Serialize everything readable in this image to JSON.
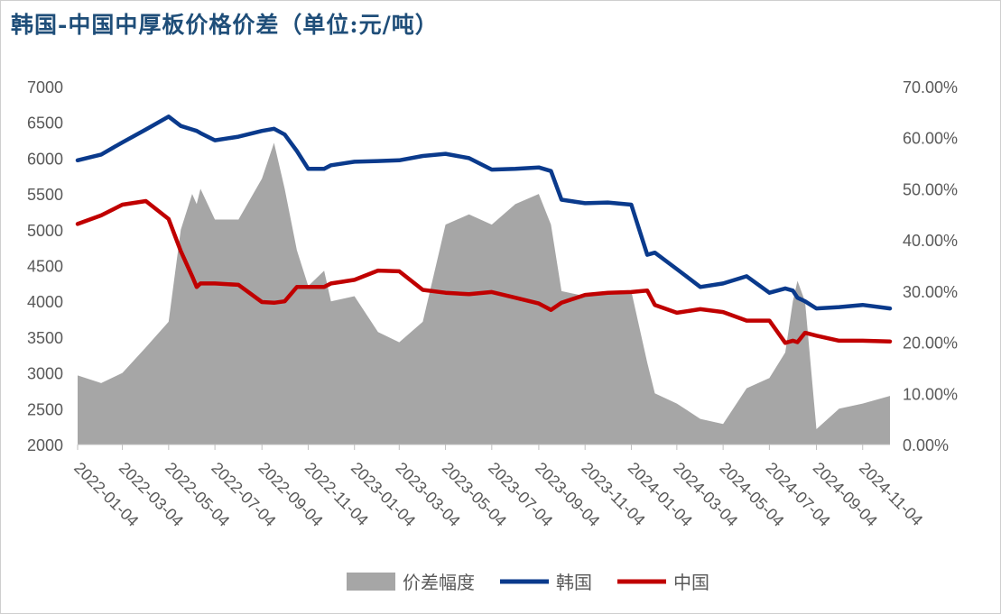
{
  "chart_data": {
    "type": "line",
    "title": "韩国-中国中厚板价格价差（单位:元/吨）",
    "xlabel": "",
    "ylabel": "",
    "ylim": [
      2000,
      7000
    ],
    "y2lim": [
      0,
      70
    ],
    "yticks": [
      "2000",
      "2500",
      "3000",
      "3500",
      "4000",
      "4500",
      "5000",
      "5500",
      "6000",
      "6500",
      "7000"
    ],
    "y2ticks": [
      "0.00%",
      "10.00%",
      "20.00%",
      "30.00%",
      "40.00%",
      "50.00%",
      "60.00%",
      "70.00%"
    ],
    "xticks": [
      "2022-01-04",
      "2022-03-04",
      "2022-05-04",
      "2022-07-04",
      "2022-09-04",
      "2022-11-04",
      "2023-01-04",
      "2023-03-04",
      "2023-05-04",
      "2023-07-04",
      "2023-09-04",
      "2023-11-04",
      "2024-01-04",
      "2024-03-04",
      "2024-05-04",
      "2024-07-04",
      "2024-09-04",
      "2024-11-04"
    ],
    "x": [
      "2022-01-04",
      "2022-02-04",
      "2022-03-04",
      "2022-04-04",
      "2022-05-04",
      "2022-05-20",
      "2022-06-04",
      "2022-06-10",
      "2022-06-15",
      "2022-07-04",
      "2022-08-04",
      "2022-09-04",
      "2022-09-20",
      "2022-10-04",
      "2022-10-20",
      "2022-11-04",
      "2022-11-25",
      "2022-12-04",
      "2023-01-04",
      "2023-02-04",
      "2023-03-04",
      "2023-04-04",
      "2023-05-04",
      "2023-06-04",
      "2023-07-04",
      "2023-08-04",
      "2023-09-04",
      "2023-09-20",
      "2023-10-04",
      "2023-11-04",
      "2023-12-04",
      "2024-01-04",
      "2024-01-25",
      "2024-02-04",
      "2024-03-04",
      "2024-04-04",
      "2024-05-04",
      "2024-06-04",
      "2024-07-04",
      "2024-07-25",
      "2024-08-04",
      "2024-08-10",
      "2024-08-20",
      "2024-09-04",
      "2024-10-04",
      "2024-11-04",
      "2024-12-10"
    ],
    "series": [
      {
        "name": "价差幅度",
        "axis": "right",
        "kind": "area",
        "color": "#a6a6a6",
        "values": [
          13.5,
          12,
          14,
          19,
          24,
          42,
          49,
          47,
          50,
          44,
          44,
          52,
          59,
          50,
          38,
          31,
          34,
          28,
          29,
          22,
          20,
          24,
          43,
          45,
          43,
          47,
          49,
          43,
          30,
          29,
          30,
          30,
          16,
          10,
          8,
          5,
          4,
          11,
          13,
          18,
          28,
          32,
          28,
          3,
          7,
          8,
          9.5
        ]
      },
      {
        "name": "韩国",
        "axis": "left",
        "kind": "line",
        "color": "#0a3a8c",
        "values": [
          5970,
          6050,
          6220,
          6400,
          6580,
          6450,
          6400,
          6380,
          6350,
          6250,
          6300,
          6380,
          6410,
          6330,
          6100,
          5850,
          5850,
          5900,
          5950,
          5960,
          5970,
          6030,
          6060,
          6000,
          5840,
          5850,
          5870,
          5820,
          5420,
          5370,
          5380,
          5350,
          4650,
          4680,
          4450,
          4200,
          4250,
          4350,
          4120,
          4180,
          4150,
          4050,
          4000,
          3900,
          3920,
          3950,
          3900
        ]
      },
      {
        "name": "中国",
        "axis": "left",
        "kind": "line",
        "color": "#c00000",
        "values": [
          5080,
          5200,
          5350,
          5400,
          5150,
          4700,
          4350,
          4200,
          4250,
          4250,
          4230,
          3990,
          3980,
          4000,
          4200,
          4200,
          4200,
          4250,
          4300,
          4430,
          4420,
          4160,
          4120,
          4100,
          4130,
          4050,
          3970,
          3880,
          3980,
          4090,
          4120,
          4130,
          4150,
          3950,
          3840,
          3890,
          3850,
          3730,
          3730,
          3420,
          3450,
          3430,
          3560,
          3520,
          3450,
          3450,
          3440
        ]
      }
    ],
    "legend": "bottom",
    "grid": false
  }
}
